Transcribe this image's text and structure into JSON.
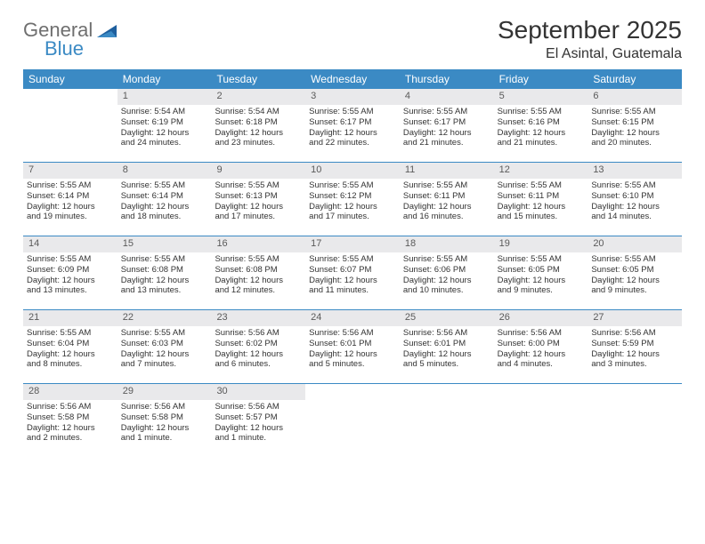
{
  "logo": {
    "word1": "General",
    "word2": "Blue"
  },
  "title": "September 2025",
  "location": "El Asintal, Guatemala",
  "colors": {
    "header_bg": "#3b8ac4",
    "header_text": "#ffffff",
    "daynum_bg": "#e9e9eb",
    "daynum_text": "#5a5a5a",
    "rule": "#3b8ac4",
    "body_text": "#333333"
  },
  "weekdays": [
    "Sunday",
    "Monday",
    "Tuesday",
    "Wednesday",
    "Thursday",
    "Friday",
    "Saturday"
  ],
  "weeks": [
    [
      {
        "empty": true
      },
      {
        "n": "1",
        "sr": "Sunrise: 5:54 AM",
        "ss": "Sunset: 6:19 PM",
        "d1": "Daylight: 12 hours",
        "d2": "and 24 minutes."
      },
      {
        "n": "2",
        "sr": "Sunrise: 5:54 AM",
        "ss": "Sunset: 6:18 PM",
        "d1": "Daylight: 12 hours",
        "d2": "and 23 minutes."
      },
      {
        "n": "3",
        "sr": "Sunrise: 5:55 AM",
        "ss": "Sunset: 6:17 PM",
        "d1": "Daylight: 12 hours",
        "d2": "and 22 minutes."
      },
      {
        "n": "4",
        "sr": "Sunrise: 5:55 AM",
        "ss": "Sunset: 6:17 PM",
        "d1": "Daylight: 12 hours",
        "d2": "and 21 minutes."
      },
      {
        "n": "5",
        "sr": "Sunrise: 5:55 AM",
        "ss": "Sunset: 6:16 PM",
        "d1": "Daylight: 12 hours",
        "d2": "and 21 minutes."
      },
      {
        "n": "6",
        "sr": "Sunrise: 5:55 AM",
        "ss": "Sunset: 6:15 PM",
        "d1": "Daylight: 12 hours",
        "d2": "and 20 minutes."
      }
    ],
    [
      {
        "n": "7",
        "sr": "Sunrise: 5:55 AM",
        "ss": "Sunset: 6:14 PM",
        "d1": "Daylight: 12 hours",
        "d2": "and 19 minutes."
      },
      {
        "n": "8",
        "sr": "Sunrise: 5:55 AM",
        "ss": "Sunset: 6:14 PM",
        "d1": "Daylight: 12 hours",
        "d2": "and 18 minutes."
      },
      {
        "n": "9",
        "sr": "Sunrise: 5:55 AM",
        "ss": "Sunset: 6:13 PM",
        "d1": "Daylight: 12 hours",
        "d2": "and 17 minutes."
      },
      {
        "n": "10",
        "sr": "Sunrise: 5:55 AM",
        "ss": "Sunset: 6:12 PM",
        "d1": "Daylight: 12 hours",
        "d2": "and 17 minutes."
      },
      {
        "n": "11",
        "sr": "Sunrise: 5:55 AM",
        "ss": "Sunset: 6:11 PM",
        "d1": "Daylight: 12 hours",
        "d2": "and 16 minutes."
      },
      {
        "n": "12",
        "sr": "Sunrise: 5:55 AM",
        "ss": "Sunset: 6:11 PM",
        "d1": "Daylight: 12 hours",
        "d2": "and 15 minutes."
      },
      {
        "n": "13",
        "sr": "Sunrise: 5:55 AM",
        "ss": "Sunset: 6:10 PM",
        "d1": "Daylight: 12 hours",
        "d2": "and 14 minutes."
      }
    ],
    [
      {
        "n": "14",
        "sr": "Sunrise: 5:55 AM",
        "ss": "Sunset: 6:09 PM",
        "d1": "Daylight: 12 hours",
        "d2": "and 13 minutes."
      },
      {
        "n": "15",
        "sr": "Sunrise: 5:55 AM",
        "ss": "Sunset: 6:08 PM",
        "d1": "Daylight: 12 hours",
        "d2": "and 13 minutes."
      },
      {
        "n": "16",
        "sr": "Sunrise: 5:55 AM",
        "ss": "Sunset: 6:08 PM",
        "d1": "Daylight: 12 hours",
        "d2": "and 12 minutes."
      },
      {
        "n": "17",
        "sr": "Sunrise: 5:55 AM",
        "ss": "Sunset: 6:07 PM",
        "d1": "Daylight: 12 hours",
        "d2": "and 11 minutes."
      },
      {
        "n": "18",
        "sr": "Sunrise: 5:55 AM",
        "ss": "Sunset: 6:06 PM",
        "d1": "Daylight: 12 hours",
        "d2": "and 10 minutes."
      },
      {
        "n": "19",
        "sr": "Sunrise: 5:55 AM",
        "ss": "Sunset: 6:05 PM",
        "d1": "Daylight: 12 hours",
        "d2": "and 9 minutes."
      },
      {
        "n": "20",
        "sr": "Sunrise: 5:55 AM",
        "ss": "Sunset: 6:05 PM",
        "d1": "Daylight: 12 hours",
        "d2": "and 9 minutes."
      }
    ],
    [
      {
        "n": "21",
        "sr": "Sunrise: 5:55 AM",
        "ss": "Sunset: 6:04 PM",
        "d1": "Daylight: 12 hours",
        "d2": "and 8 minutes."
      },
      {
        "n": "22",
        "sr": "Sunrise: 5:55 AM",
        "ss": "Sunset: 6:03 PM",
        "d1": "Daylight: 12 hours",
        "d2": "and 7 minutes."
      },
      {
        "n": "23",
        "sr": "Sunrise: 5:56 AM",
        "ss": "Sunset: 6:02 PM",
        "d1": "Daylight: 12 hours",
        "d2": "and 6 minutes."
      },
      {
        "n": "24",
        "sr": "Sunrise: 5:56 AM",
        "ss": "Sunset: 6:01 PM",
        "d1": "Daylight: 12 hours",
        "d2": "and 5 minutes."
      },
      {
        "n": "25",
        "sr": "Sunrise: 5:56 AM",
        "ss": "Sunset: 6:01 PM",
        "d1": "Daylight: 12 hours",
        "d2": "and 5 minutes."
      },
      {
        "n": "26",
        "sr": "Sunrise: 5:56 AM",
        "ss": "Sunset: 6:00 PM",
        "d1": "Daylight: 12 hours",
        "d2": "and 4 minutes."
      },
      {
        "n": "27",
        "sr": "Sunrise: 5:56 AM",
        "ss": "Sunset: 5:59 PM",
        "d1": "Daylight: 12 hours",
        "d2": "and 3 minutes."
      }
    ],
    [
      {
        "n": "28",
        "sr": "Sunrise: 5:56 AM",
        "ss": "Sunset: 5:58 PM",
        "d1": "Daylight: 12 hours",
        "d2": "and 2 minutes."
      },
      {
        "n": "29",
        "sr": "Sunrise: 5:56 AM",
        "ss": "Sunset: 5:58 PM",
        "d1": "Daylight: 12 hours",
        "d2": "and 1 minute."
      },
      {
        "n": "30",
        "sr": "Sunrise: 5:56 AM",
        "ss": "Sunset: 5:57 PM",
        "d1": "Daylight: 12 hours",
        "d2": "and 1 minute."
      },
      {
        "empty": true
      },
      {
        "empty": true
      },
      {
        "empty": true
      },
      {
        "empty": true
      }
    ]
  ]
}
